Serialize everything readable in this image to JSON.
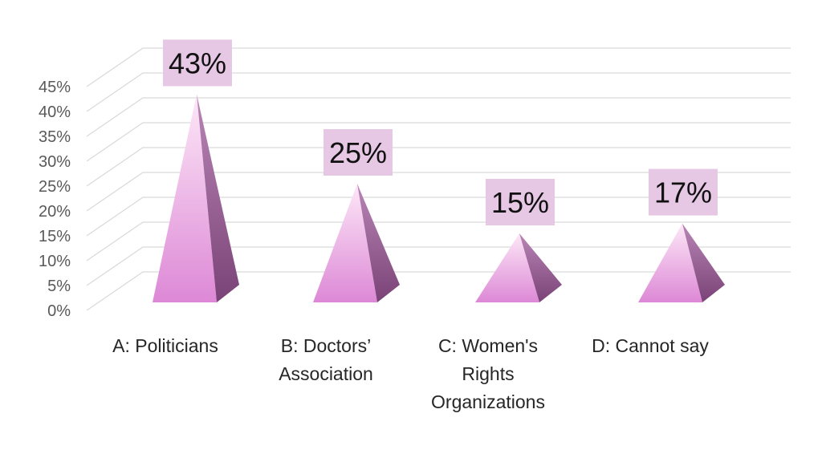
{
  "chart_data": {
    "type": "bar",
    "style": "3d-pyramid",
    "categories": [
      [
        "A: Politicians"
      ],
      [
        "B: Doctors’",
        "Association"
      ],
      [
        "C: Women's",
        "Rights",
        "Organizations"
      ],
      [
        "D: Cannot say"
      ]
    ],
    "values": [
      43,
      25,
      15,
      17
    ],
    "data_labels": [
      "43%",
      "25%",
      "15%",
      "17%"
    ],
    "ylim": [
      0,
      45
    ],
    "yticks": [
      0,
      5,
      10,
      15,
      20,
      25,
      30,
      35,
      40,
      45
    ],
    "ytick_labels": [
      "0%",
      "5%",
      "10%",
      "15%",
      "20%",
      "25%",
      "30%",
      "35%",
      "40%",
      "45%"
    ],
    "grid": true,
    "legend": "none",
    "colors": {
      "pyramid_top": "#fde8f7",
      "pyramid_bottom": "#dd88d6",
      "pyramid_side_light": "#b985b6",
      "pyramid_side_dark": "#7a4377",
      "label_box": "#e6c7e4",
      "grid": "#d9d9d9"
    }
  }
}
